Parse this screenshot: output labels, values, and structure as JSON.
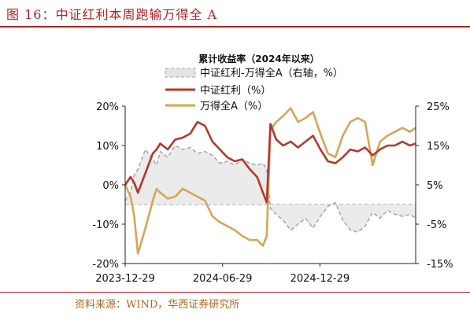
{
  "figure": {
    "title": "图 16：中证红利本周跑输万得全 A",
    "source": "资料来源：WIND，华西证券研究所"
  },
  "colors": {
    "accent": "#b22222",
    "series_zhongzheng": "#b03a2e",
    "series_wande": "#d4a657",
    "series_diff": "#a6a6a6",
    "diff_fill": "#ebebeb"
  },
  "chart_data": {
    "type": "line",
    "title": "累计收益率（2024年以来）",
    "x_ticks": [
      "2023-12-29",
      "2024-06-29",
      "2024-12-29"
    ],
    "x_range": [
      "2023-12-29",
      "2025-06-27"
    ],
    "left_axis": {
      "ticks": [
        "20%",
        "10%",
        "0%",
        "-10%",
        "-20%"
      ],
      "range": [
        -20,
        20
      ]
    },
    "right_axis": {
      "ticks": [
        "25%",
        "15%",
        "5%",
        "-5%",
        "-15%"
      ],
      "range": [
        -15,
        25
      ]
    },
    "legend_placement": "top-center",
    "grid": false,
    "series": [
      {
        "name": "中证红利-万得全A（右轴，%）",
        "axis": "right",
        "style": "dashed-area",
        "x": [
          "2023-12-29",
          "2024-01-08",
          "2024-01-15",
          "2024-01-22",
          "2024-02-05",
          "2024-02-19",
          "2024-02-26",
          "2024-03-04",
          "2024-03-18",
          "2024-04-01",
          "2024-04-15",
          "2024-04-29",
          "2024-05-13",
          "2024-05-27",
          "2024-06-10",
          "2024-06-24",
          "2024-07-08",
          "2024-07-22",
          "2024-08-05",
          "2024-08-19",
          "2024-09-02",
          "2024-09-13",
          "2024-09-20",
          "2024-09-27",
          "2024-10-08",
          "2024-10-21",
          "2024-11-04",
          "2024-11-18",
          "2024-12-02",
          "2024-12-16",
          "2024-12-30",
          "2025-01-13",
          "2025-01-27",
          "2025-02-10",
          "2025-02-24",
          "2025-03-10",
          "2025-03-24",
          "2025-04-07",
          "2025-04-21",
          "2025-05-05",
          "2025-05-19",
          "2025-06-02",
          "2025-06-16",
          "2025-06-27"
        ],
        "values": [
          1.0,
          3.0,
          7.5,
          9.0,
          14.0,
          11.5,
          10.0,
          13.5,
          12.0,
          15.0,
          14.0,
          14.5,
          13.0,
          13.5,
          12.5,
          10.5,
          11.0,
          10.0,
          11.5,
          10.5,
          10.0,
          10.5,
          9.0,
          -1.0,
          -2.5,
          -4.0,
          -6.5,
          -5.0,
          -3.5,
          -6.0,
          -3.0,
          -0.5,
          0.5,
          -4.0,
          -6.5,
          -7.0,
          -5.5,
          -2.0,
          -3.5,
          -1.5,
          -2.5,
          -3.0,
          -2.5,
          -3.5
        ]
      },
      {
        "name": "中证红利（%）",
        "axis": "left",
        "style": "solid",
        "x": [
          "2023-12-29",
          "2024-01-08",
          "2024-01-15",
          "2024-01-22",
          "2024-02-05",
          "2024-02-19",
          "2024-02-26",
          "2024-03-04",
          "2024-03-18",
          "2024-04-01",
          "2024-04-15",
          "2024-04-29",
          "2024-05-13",
          "2024-05-27",
          "2024-06-10",
          "2024-06-24",
          "2024-07-08",
          "2024-07-22",
          "2024-08-05",
          "2024-08-19",
          "2024-09-02",
          "2024-09-13",
          "2024-09-20",
          "2024-09-27",
          "2024-10-08",
          "2024-10-21",
          "2024-11-04",
          "2024-11-18",
          "2024-12-02",
          "2024-12-16",
          "2024-12-30",
          "2025-01-13",
          "2025-01-27",
          "2025-02-10",
          "2025-02-24",
          "2025-03-10",
          "2025-03-24",
          "2025-04-07",
          "2025-04-21",
          "2025-05-05",
          "2025-05-19",
          "2025-06-02",
          "2025-06-16",
          "2025-06-27"
        ],
        "values": [
          0.0,
          2.0,
          0.5,
          -2.0,
          3.0,
          8.0,
          9.0,
          10.5,
          9.0,
          11.5,
          12.0,
          13.0,
          16.0,
          15.0,
          11.0,
          9.0,
          7.0,
          6.0,
          6.5,
          4.0,
          2.0,
          -2.0,
          -4.5,
          15.5,
          11.5,
          10.0,
          11.0,
          9.5,
          11.0,
          12.5,
          9.0,
          6.0,
          5.5,
          7.0,
          9.0,
          8.5,
          9.5,
          7.5,
          9.0,
          10.0,
          10.0,
          11.0,
          10.0,
          10.5
        ]
      },
      {
        "name": "万得全A（%）",
        "axis": "left",
        "style": "solid",
        "x": [
          "2023-12-29",
          "2024-01-08",
          "2024-01-15",
          "2024-01-22",
          "2024-02-05",
          "2024-02-19",
          "2024-02-26",
          "2024-03-04",
          "2024-03-18",
          "2024-04-01",
          "2024-04-15",
          "2024-04-29",
          "2024-05-13",
          "2024-05-27",
          "2024-06-10",
          "2024-06-24",
          "2024-07-08",
          "2024-07-22",
          "2024-08-05",
          "2024-08-19",
          "2024-09-02",
          "2024-09-13",
          "2024-09-20",
          "2024-09-27",
          "2024-10-08",
          "2024-10-21",
          "2024-11-04",
          "2024-11-18",
          "2024-12-02",
          "2024-12-16",
          "2024-12-30",
          "2025-01-13",
          "2025-01-27",
          "2025-02-10",
          "2025-02-24",
          "2025-03-10",
          "2025-03-24",
          "2025-04-07",
          "2025-04-21",
          "2025-05-05",
          "2025-05-19",
          "2025-06-02",
          "2025-06-16",
          "2025-06-27"
        ],
        "values": [
          0.0,
          -3.0,
          -8.0,
          -17.5,
          -11.0,
          -4.0,
          -1.0,
          -2.0,
          -3.5,
          -3.0,
          -1.0,
          -2.0,
          -3.0,
          -4.0,
          -8.0,
          -9.5,
          -10.5,
          -11.5,
          -13.0,
          -14.0,
          -14.0,
          -15.5,
          -13.0,
          14.0,
          16.0,
          17.5,
          19.5,
          16.0,
          17.0,
          18.5,
          13.0,
          8.0,
          7.0,
          12.5,
          16.0,
          17.0,
          16.0,
          5.0,
          11.0,
          12.5,
          13.5,
          14.5,
          13.5,
          14.5
        ]
      }
    ]
  }
}
